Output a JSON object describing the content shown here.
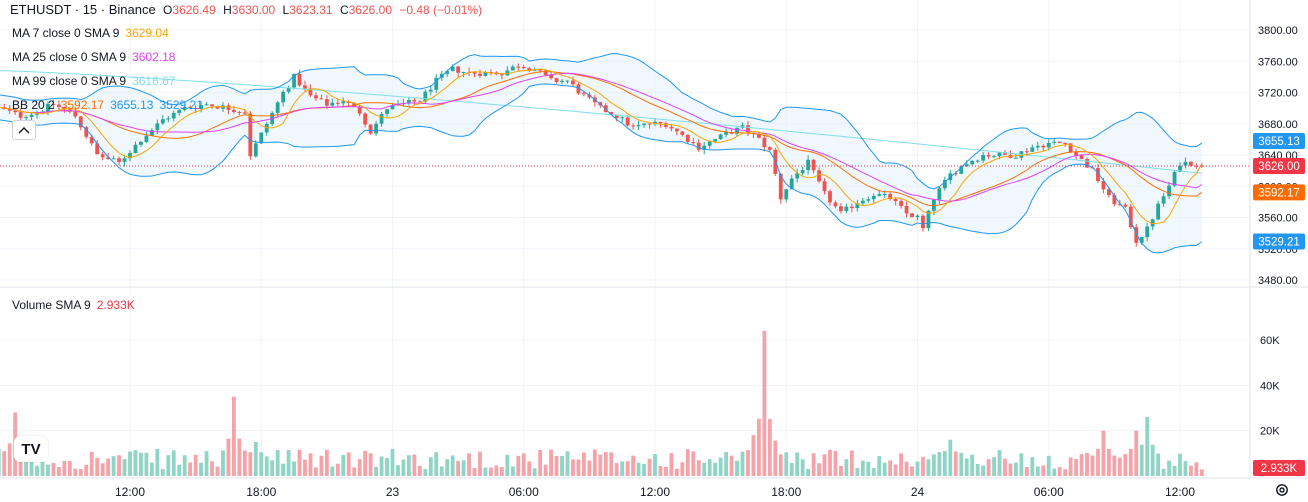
{
  "header": {
    "symbol": "ETHUSDT · 15 · Binance",
    "open_label": "O",
    "open": "3626.49",
    "high_label": "H",
    "high": "3630.00",
    "low_label": "L",
    "low": "3623.31",
    "close_label": "C",
    "close": "3626.00",
    "change": "−0.48 (−0.01%)"
  },
  "indicators": [
    {
      "label": "MA 7 close 0 SMA 9",
      "value": "3629.04",
      "color": "#f7a600"
    },
    {
      "label": "MA 25 close 0 SMA 9",
      "value": "3602.18",
      "color": "#e040fb"
    },
    {
      "label": "MA 99 close 0 SMA 9",
      "value": "3616.67",
      "color": "#80deea"
    }
  ],
  "bb": {
    "label": "BB 20 2",
    "basis": "3592.17",
    "upper": "3655.13",
    "lower": "3529.21",
    "basis_color": "#ff6d00",
    "band_color": "#2196f3"
  },
  "volume_legend": {
    "label": "Volume SMA 9",
    "value": "2.933K"
  },
  "price_axis": {
    "ticks": [
      "3800.00",
      "3760.00",
      "3720.00",
      "3680.00",
      "3640.00",
      "3600.00",
      "3560.00",
      "3520.00",
      "3480.00"
    ]
  },
  "volume_axis": {
    "ticks": [
      "60K",
      "40K",
      "20K"
    ]
  },
  "time_axis": {
    "ticks": [
      "12:00",
      "18:00",
      "23",
      "06:00",
      "12:00",
      "18:00",
      "24",
      "06:00",
      "12:00"
    ]
  },
  "price_badges": [
    {
      "value": "3655.13",
      "color": "#2196f3"
    },
    {
      "value": "3626.00",
      "color": "#f23645"
    },
    {
      "value": "3592.17",
      "color": "#ff6d00"
    },
    {
      "value": "3529.21",
      "color": "#2196f3"
    }
  ],
  "volume_badge": {
    "value": "2.933K",
    "color": "#f23645"
  },
  "logo_text": "TV",
  "colors": {
    "up": "#26a69a",
    "down": "#ef5350",
    "up_vol": "#8fd4c5",
    "down_vol": "#f5a3a8",
    "ma7": "#f7a600",
    "ma25": "#e040fb",
    "ma99": "#80deea",
    "bb_basis": "#ff6d00",
    "bb_band": "#2196f3",
    "bb_fill": "#e3f2fd"
  },
  "chart_data": {
    "type": "candlestick",
    "price_range": [
      3480,
      3800
    ],
    "volume_range": [
      0,
      70000
    ],
    "anchors_x": [
      {
        "label": "12:00",
        "x": 0
      },
      {
        "label": "18:00",
        "x": 24
      },
      {
        "label": "23",
        "x": 48
      },
      {
        "label": "06:00",
        "x": 72
      },
      {
        "label": "12:00",
        "x": 96
      },
      {
        "label": "18:00",
        "x": 120
      },
      {
        "label": "24",
        "x": 144
      },
      {
        "label": "06:00",
        "x": 168
      },
      {
        "label": "12:00",
        "x": 192
      }
    ],
    "close_path": [
      [
        -24,
        3700
      ],
      [
        -20,
        3690
      ],
      [
        -17,
        3695
      ],
      [
        -14,
        3705
      ],
      [
        -10,
        3690
      ],
      [
        -6,
        3640
      ],
      [
        -2,
        3630
      ],
      [
        2,
        3660
      ],
      [
        6,
        3685
      ],
      [
        10,
        3700
      ],
      [
        14,
        3705
      ],
      [
        18,
        3700
      ],
      [
        21,
        3695
      ],
      [
        22,
        3640
      ],
      [
        25,
        3680
      ],
      [
        28,
        3720
      ],
      [
        30,
        3740
      ],
      [
        33,
        3715
      ],
      [
        36,
        3705
      ],
      [
        39,
        3710
      ],
      [
        42,
        3695
      ],
      [
        44,
        3670
      ],
      [
        47,
        3700
      ],
      [
        50,
        3705
      ],
      [
        53,
        3710
      ],
      [
        56,
        3735
      ],
      [
        59,
        3750
      ],
      [
        62,
        3745
      ],
      [
        65,
        3745
      ],
      [
        68,
        3745
      ],
      [
        71,
        3755
      ],
      [
        74,
        3750
      ],
      [
        77,
        3735
      ],
      [
        80,
        3735
      ],
      [
        83,
        3715
      ],
      [
        86,
        3700
      ],
      [
        89,
        3690
      ],
      [
        92,
        3675
      ],
      [
        95,
        3680
      ],
      [
        98,
        3680
      ],
      [
        101,
        3665
      ],
      [
        104,
        3650
      ],
      [
        107,
        3660
      ],
      [
        110,
        3670
      ],
      [
        112,
        3675
      ],
      [
        115,
        3660
      ],
      [
        117,
        3645
      ],
      [
        119,
        3585
      ],
      [
        121,
        3610
      ],
      [
        124,
        3630
      ],
      [
        127,
        3590
      ],
      [
        130,
        3565
      ],
      [
        133,
        3580
      ],
      [
        136,
        3590
      ],
      [
        139,
        3585
      ],
      [
        142,
        3565
      ],
      [
        144,
        3560
      ],
      [
        145,
        3545
      ],
      [
        147,
        3585
      ],
      [
        150,
        3615
      ],
      [
        153,
        3630
      ],
      [
        156,
        3640
      ],
      [
        159,
        3640
      ],
      [
        162,
        3640
      ],
      [
        165,
        3650
      ],
      [
        168,
        3655
      ],
      [
        171,
        3655
      ],
      [
        173,
        3640
      ],
      [
        176,
        3620
      ],
      [
        179,
        3585
      ],
      [
        182,
        3570
      ],
      [
        184,
        3530
      ],
      [
        186,
        3545
      ],
      [
        188,
        3575
      ],
      [
        190,
        3600
      ],
      [
        192,
        3630
      ],
      [
        194,
        3630
      ],
      [
        196,
        3626
      ]
    ],
    "volume_spikes": [
      {
        "x": -21,
        "volume": 28000
      },
      {
        "x": 19,
        "volume": 35000
      },
      {
        "x": 23,
        "volume": 15000
      },
      {
        "x": 116,
        "volume": 64000
      },
      {
        "x": 114,
        "volume": 18000
      },
      {
        "x": 150,
        "volume": 16000
      },
      {
        "x": 178,
        "volume": 20000
      },
      {
        "x": 184,
        "volume": 20000
      },
      {
        "x": 186,
        "volume": 26000
      }
    ],
    "last": {
      "open": 3626.49,
      "high": 3630.0,
      "low": 3623.31,
      "close": 3626.0,
      "volume": 2933
    },
    "bb_last": {
      "basis": 3592.17,
      "upper": 3655.13,
      "lower": 3529.21
    },
    "ma_last": {
      "ma7": 3629.04,
      "ma25": 3602.18,
      "ma99": 3616.67
    }
  }
}
